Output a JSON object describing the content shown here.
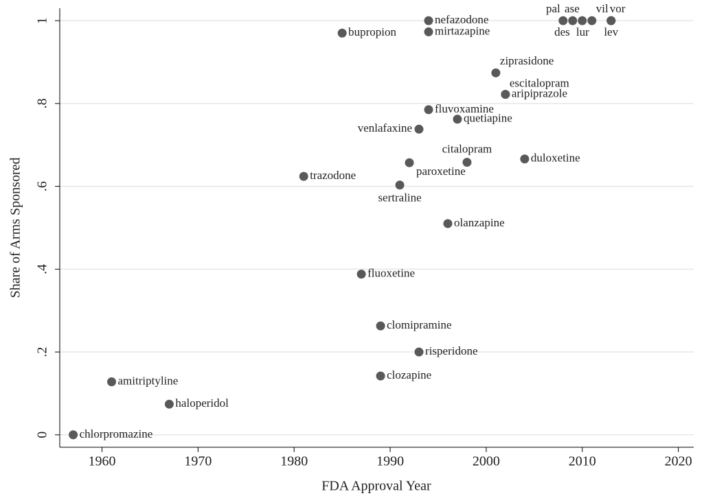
{
  "chart_data": {
    "type": "scatter",
    "xlabel": "FDA Approval Year",
    "ylabel": "Share of Arms Sponsored",
    "xlim": [
      1955.6,
      2021.6
    ],
    "xticks": [
      1960,
      1970,
      1980,
      1990,
      2000,
      2010,
      2020
    ],
    "ylim": [
      -0.03,
      1.03
    ],
    "yticks": [
      0,
      {
        "value": 0.2,
        "label": ".2"
      },
      {
        "value": 0.4,
        "label": ".4"
      },
      {
        "value": 0.6,
        "label": ".6"
      },
      {
        "value": 0.8,
        "label": ".8"
      },
      1
    ],
    "grid": true,
    "color": "#595959",
    "labels": [
      "chlorpromazine",
      "amitriptyline",
      "haloperidol",
      "trazodone",
      "bupropion",
      "fluoxetine",
      "clomipramine",
      "clozapine",
      "sertraline",
      "paroxetine",
      "venlafaxine",
      "risperidone",
      "nefazodone",
      "mirtazapine",
      "fluvoxamine",
      "olanzapine",
      "quetiapine",
      "citalopram",
      "ziprasidone",
      "aripiprazole",
      "escitalopram",
      "duloxetine",
      "pal",
      "des",
      "ase",
      "lur",
      "vil",
      "vor",
      "lev"
    ],
    "x": [
      1957,
      1961,
      1967,
      1981,
      1985,
      1987,
      1989,
      1989,
      1991,
      1992,
      1993,
      1993,
      1994,
      1994,
      1994,
      1996,
      1997,
      1998,
      2001,
      2002,
      2002,
      2004,
      2008,
      2009,
      2010,
      2011,
      2013,
      2013,
      2013
    ],
    "values": [
      0,
      0.128,
      0.074,
      0.624,
      0.97,
      0.388,
      0.263,
      0.142,
      0.603,
      0.657,
      0.738,
      0.2,
      1,
      0.973,
      0.785,
      0.51,
      0.762,
      0.658,
      0.874,
      0.822,
      0.822,
      0.666,
      1,
      1,
      1,
      1,
      1,
      1,
      1
    ]
  }
}
